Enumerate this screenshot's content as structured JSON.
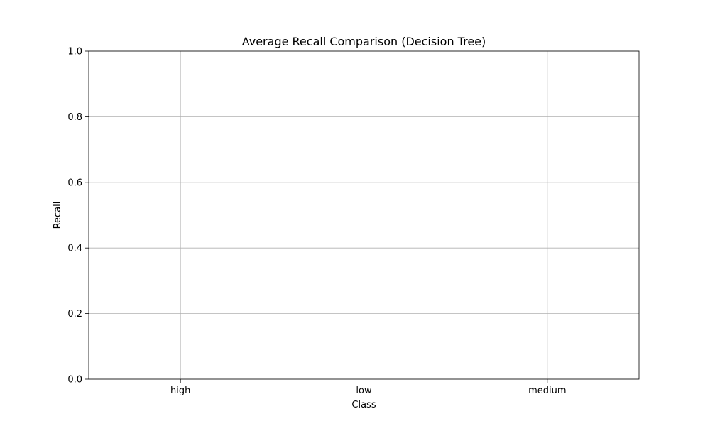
{
  "chart_data": {
    "type": "bar",
    "title": "Average Recall Comparison (Decision Tree)",
    "xlabel": "Class",
    "ylabel": "Recall",
    "categories": [
      "high",
      "low",
      "medium"
    ],
    "yticks": [
      "0.0",
      "0.2",
      "0.4",
      "0.6",
      "0.8",
      "1.0"
    ],
    "ytick_values": [
      0.0,
      0.2,
      0.4,
      0.6,
      0.8,
      1.0
    ],
    "ylim": [
      0,
      1
    ],
    "series": [
      {
        "values": [
          0,
          0,
          0
        ]
      }
    ],
    "grid": true,
    "colors": {
      "grid": "#b0b0b0",
      "axis": "#000000",
      "background": "#ffffff"
    }
  }
}
